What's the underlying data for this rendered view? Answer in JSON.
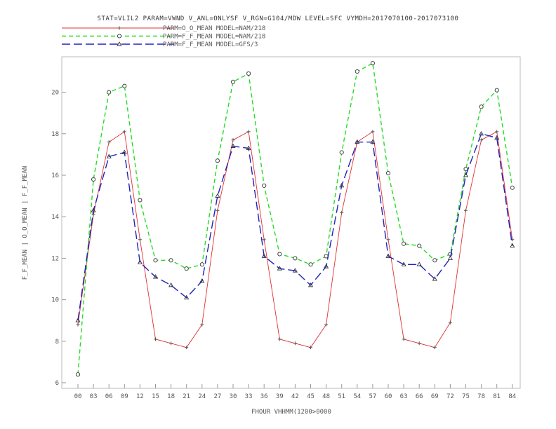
{
  "chart_data": {
    "type": "line",
    "title": "STAT=VLIL2 PARAM=VWND V_ANL=ONLYSF V_RGN=G104/MDW LEVEL=SFC VYMDH=2017070100-2017073100",
    "xlabel": "FHOUR VHHMM(1200>0000",
    "ylabel": "F_F_MEAN | O_O_MEAN | F_F_MEAN",
    "categories": [
      "00",
      "03",
      "06",
      "09",
      "12",
      "15",
      "18",
      "21",
      "24",
      "27",
      "30",
      "33",
      "36",
      "39",
      "42",
      "45",
      "48",
      "51",
      "54",
      "57",
      "60",
      "63",
      "66",
      "69",
      "72",
      "75",
      "78",
      "81",
      "84"
    ],
    "yticks": [
      6,
      8,
      10,
      12,
      14,
      16,
      18,
      20
    ],
    "ylim": [
      6,
      22
    ],
    "grid": false,
    "legend_position": "top-left",
    "series": [
      {
        "name": "PARM=O_O_MEAN MODEL=NAM/218",
        "color": "#e03030",
        "dash": "solid",
        "marker": "plus",
        "values": [
          8.8,
          14.1,
          17.6,
          18.1,
          12.9,
          8.1,
          7.9,
          7.7,
          8.8,
          14.3,
          17.7,
          18.1,
          12.9,
          8.1,
          7.9,
          7.7,
          8.8,
          14.2,
          17.6,
          18.1,
          12.9,
          8.1,
          7.9,
          7.7,
          8.9,
          14.3,
          17.7,
          18.1,
          12.9
        ]
      },
      {
        "name": "PARM=F_F_MEAN MODEL=NAM/218",
        "color": "#22dd22",
        "dash": "dashed",
        "marker": "circle",
        "values": [
          6.4,
          15.8,
          20.0,
          20.3,
          14.8,
          11.9,
          11.9,
          11.5,
          11.7,
          16.7,
          20.5,
          20.9,
          15.5,
          12.2,
          12.0,
          11.7,
          12.1,
          17.1,
          21.0,
          21.4,
          16.1,
          12.7,
          12.6,
          11.9,
          12.2,
          16.3,
          19.3,
          20.1,
          15.4
        ]
      },
      {
        "name": "PARM=F_F_MEAN MODEL=GFS/3",
        "color": "#2222bb",
        "dash": "longdash",
        "marker": "triangle",
        "values": [
          9.0,
          14.3,
          16.9,
          17.1,
          11.8,
          11.1,
          10.7,
          10.1,
          10.9,
          15.0,
          17.4,
          17.3,
          12.1,
          11.5,
          11.4,
          10.7,
          11.6,
          15.5,
          17.6,
          17.6,
          12.1,
          11.7,
          11.7,
          11.0,
          12.0,
          16.0,
          18.0,
          17.8,
          12.6
        ]
      }
    ]
  }
}
